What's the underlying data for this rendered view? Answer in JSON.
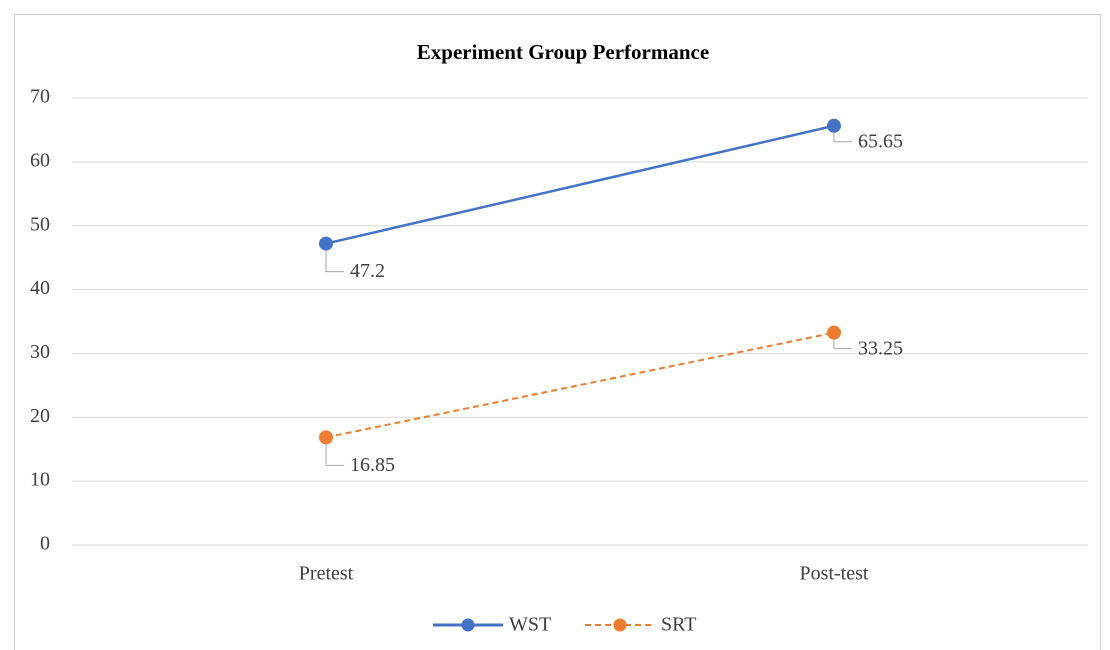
{
  "chart_data": {
    "type": "line",
    "title": "Experiment Group Performance",
    "categories": [
      "Pretest",
      "Post-test"
    ],
    "series": [
      {
        "name": "WST",
        "color": "#4472c4",
        "dashed": false,
        "values": [
          47.2,
          65.65
        ]
      },
      {
        "name": "SRT",
        "color": "#ed7d31",
        "dashed": true,
        "values": [
          16.85,
          33.25
        ]
      }
    ],
    "ylim": [
      0,
      70
    ],
    "yticks": [
      0,
      10,
      20,
      30,
      40,
      50,
      60,
      70
    ],
    "grid": true,
    "legend": "bottom"
  }
}
